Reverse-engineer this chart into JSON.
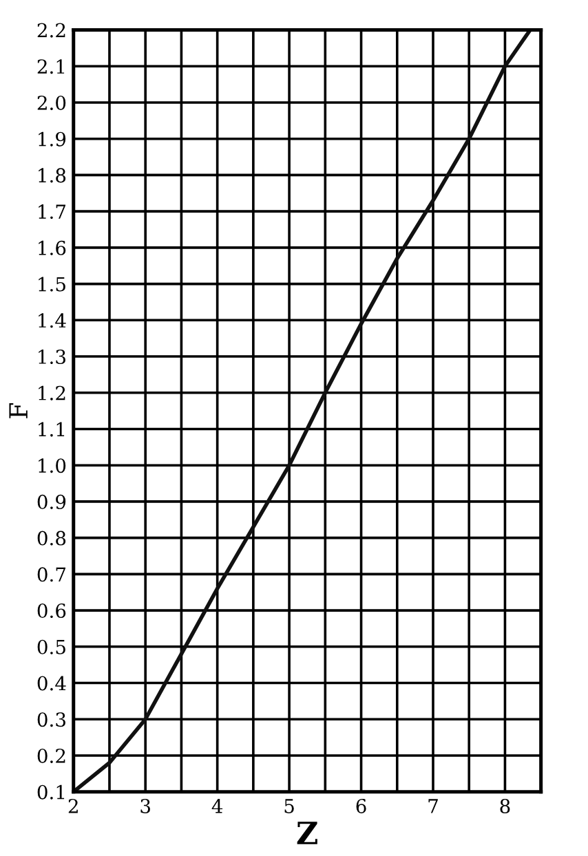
{
  "chart_data": {
    "type": "line",
    "xlabel": "Z",
    "ylabel": "F",
    "x": [
      2,
      2.5,
      3,
      3.5,
      4,
      4.5,
      5,
      5.5,
      6,
      6.5,
      7,
      7.5,
      8,
      8.35
    ],
    "series": [
      {
        "color": "#111111",
        "values": [
          0.1,
          0.18,
          0.3,
          0.48,
          0.66,
          0.83,
          1.0,
          1.2,
          1.39,
          1.57,
          1.73,
          1.9,
          2.1,
          2.2
        ]
      }
    ],
    "xlim": [
      2,
      8.5
    ],
    "xticks": [
      2,
      3,
      4,
      5,
      6,
      7,
      8
    ],
    "ylim": [
      0.1,
      2.2
    ],
    "yticks": [
      0.1,
      0.2,
      0.3,
      0.4,
      0.5,
      0.6,
      0.7,
      0.8,
      0.9,
      {
        "value": 1,
        "label": "1.0"
      },
      1.1,
      1.2,
      1.3,
      1.4,
      1.5,
      1.6,
      1.7,
      1.8,
      1.9,
      {
        "value": 2,
        "label": "2.0"
      },
      2.1,
      2.2
    ],
    "grid": true,
    "line_style": "solid",
    "marker": "none"
  }
}
